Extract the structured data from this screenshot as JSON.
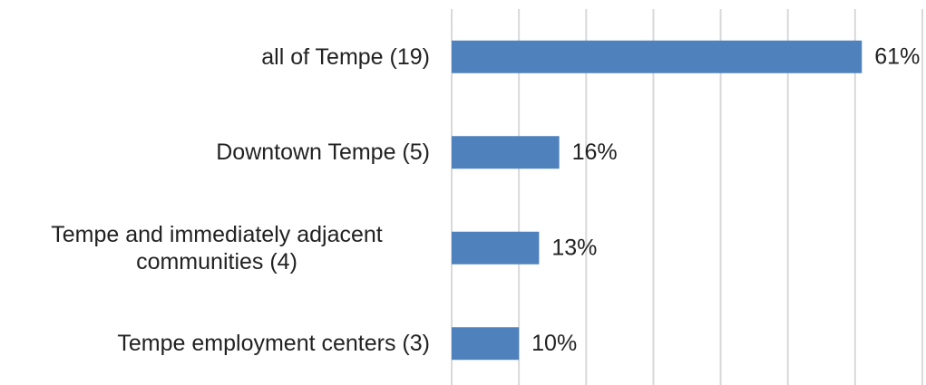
{
  "chart_data": {
    "type": "bar",
    "orientation": "horizontal",
    "categories": [
      "all of Tempe (19)",
      "Downtown Tempe (5)",
      "Tempe and immediately adjacent communities (4)",
      "Tempe employment centers (3)"
    ],
    "values": [
      61,
      16,
      13,
      10
    ],
    "value_labels": [
      "61%",
      "16%",
      "13%",
      "10%"
    ],
    "color": "#4f81bd",
    "xlim": [
      0,
      70
    ],
    "xticks": [
      0,
      10,
      20,
      30,
      40,
      50,
      60,
      70
    ],
    "grid": true
  }
}
